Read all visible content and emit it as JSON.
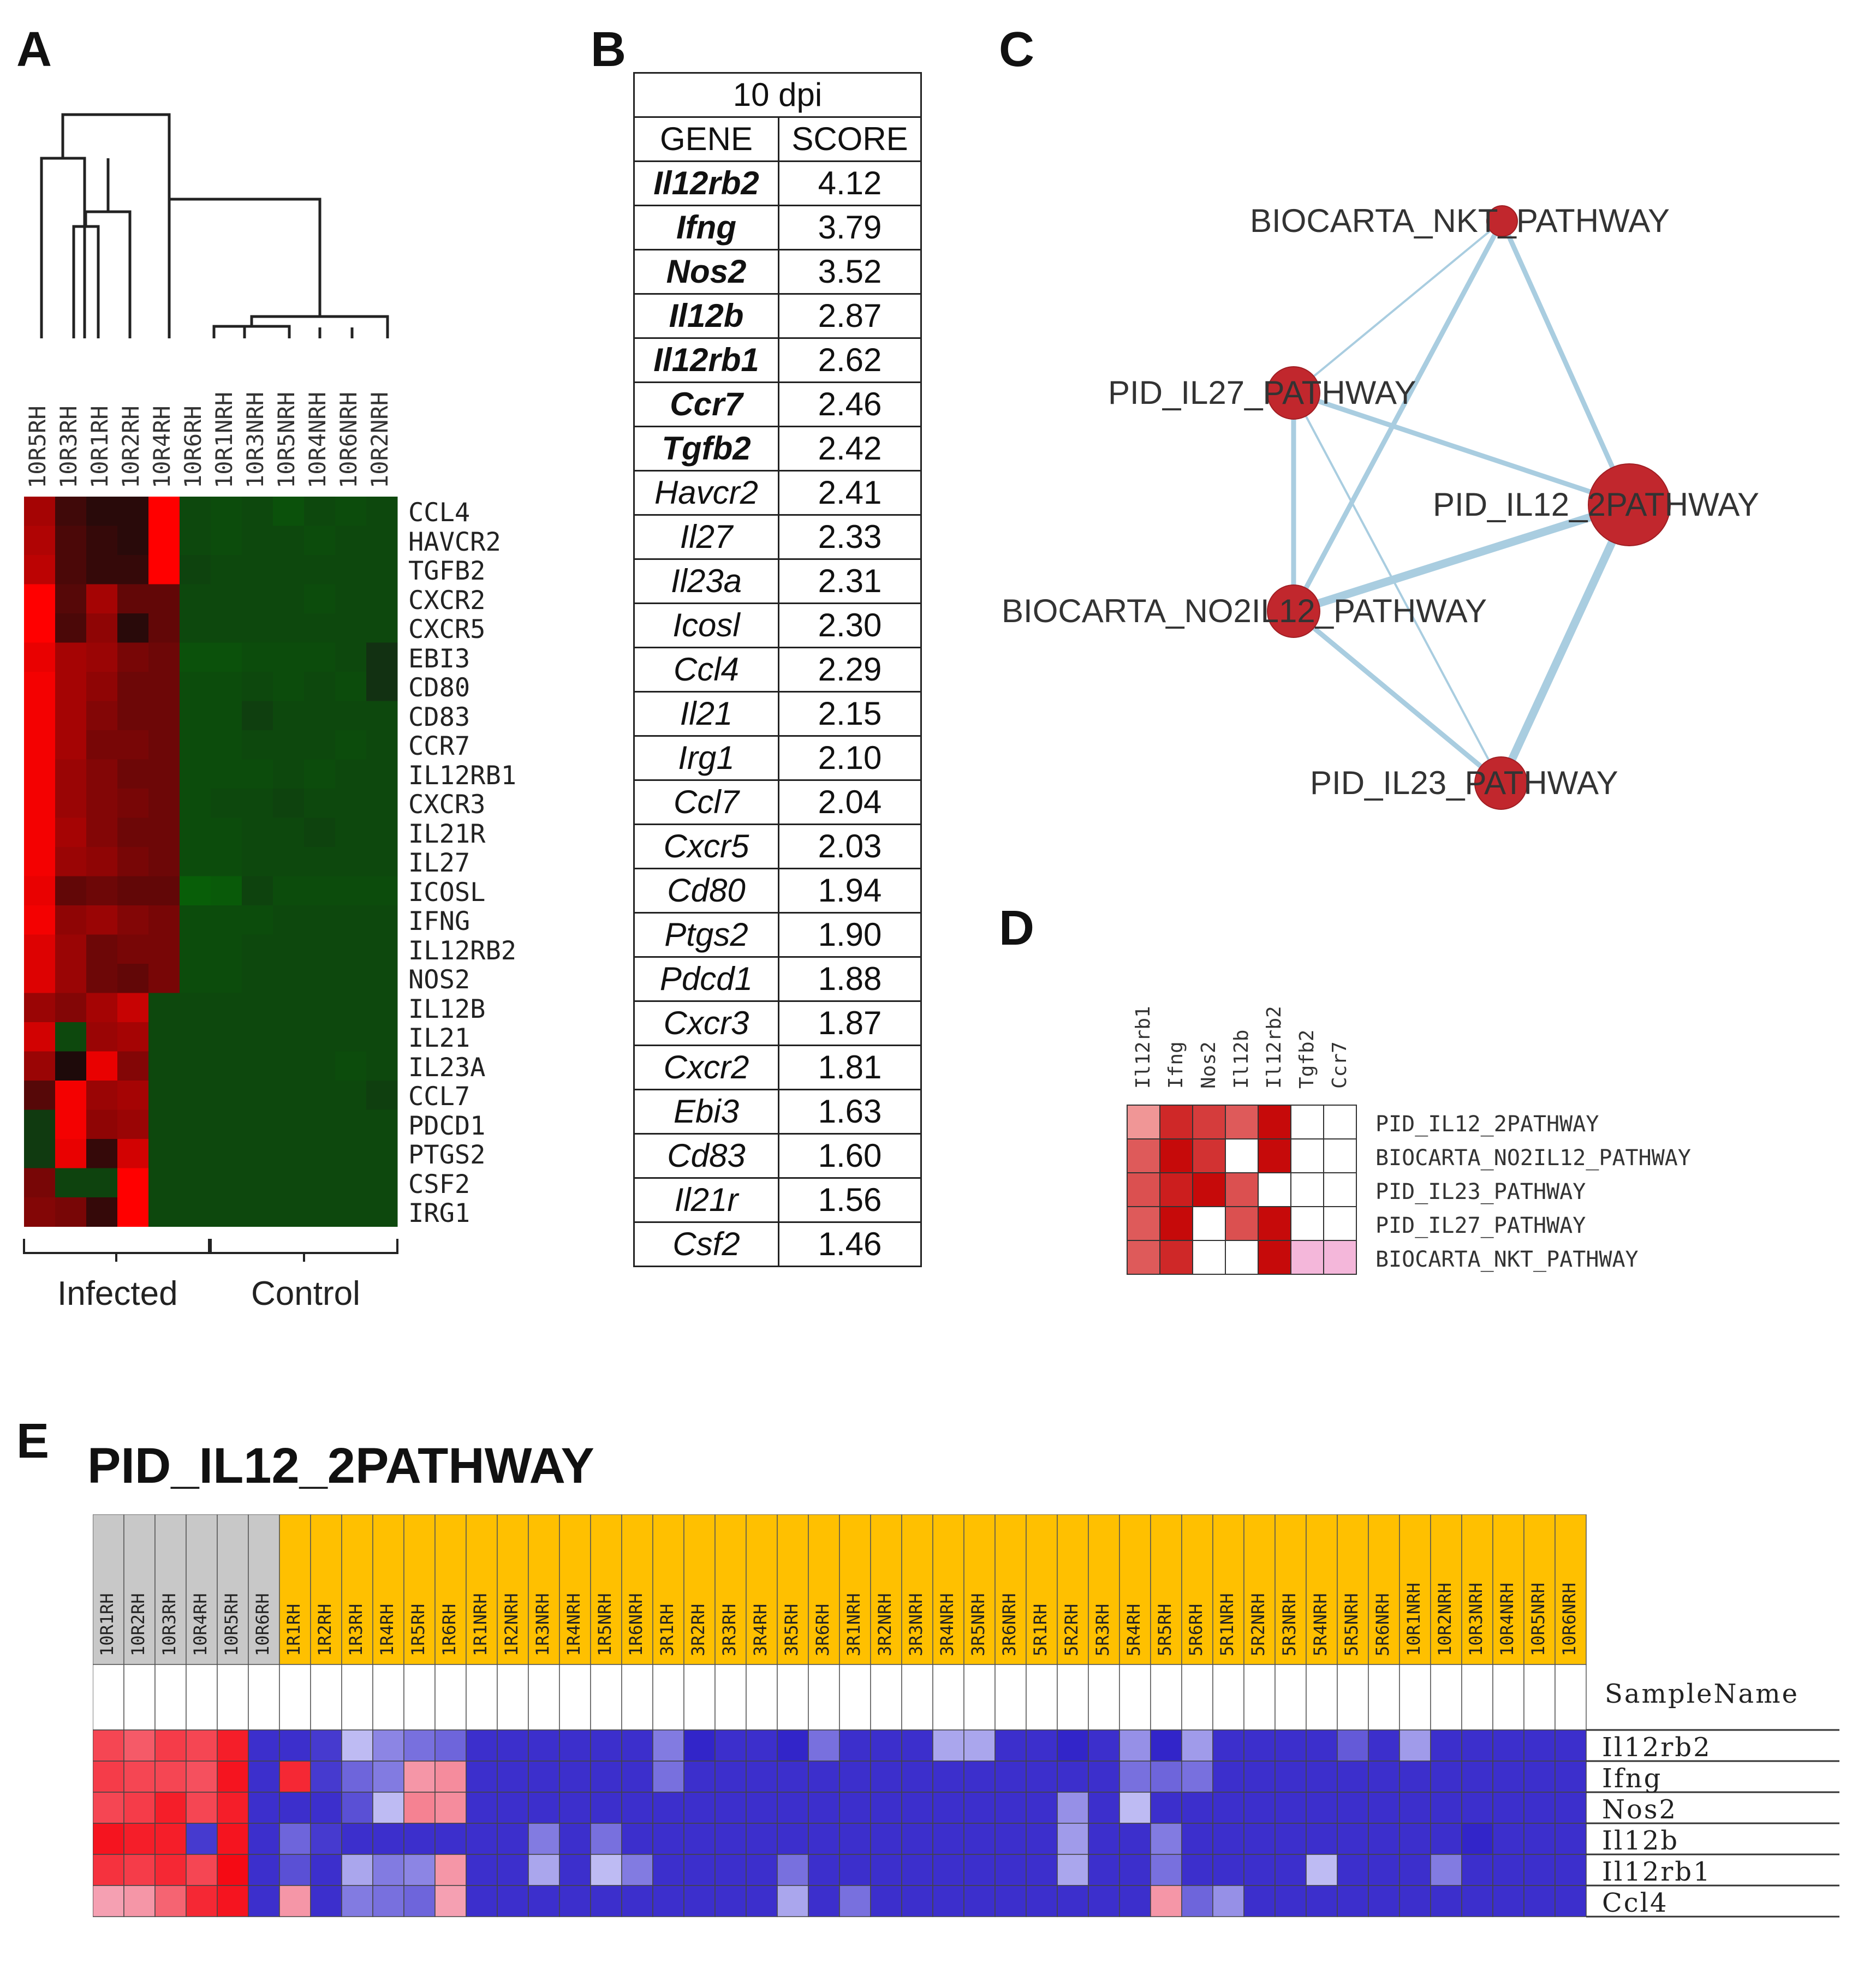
{
  "panels": {
    "a": "A",
    "b": "B",
    "c": "C",
    "d": "D",
    "e": "E"
  },
  "panel_a": {
    "columns": [
      "10R5RH",
      "10R3RH",
      "10R1RH",
      "10R2RH",
      "10R4RH",
      "10R6RH",
      "10R1NRH",
      "10R3NRH",
      "10R5NRH",
      "10R4NRH",
      "10R6NRH",
      "10R2NRH"
    ],
    "genes": [
      "CCL4",
      "HAVCR2",
      "TGFB2",
      "CXCR2",
      "CXCR5",
      "EBI3",
      "CD80",
      "CD83",
      "CCR7",
      "IL12RB1",
      "CXCR3",
      "IL21R",
      "IL27",
      "ICOSL",
      "IFNG",
      "IL12RB2",
      "NOS2",
      "IL12B",
      "IL21",
      "IL23A",
      "CCL7",
      "PDCD1",
      "PTGS2",
      "CSF2",
      "IRG1"
    ],
    "groups": {
      "infected": "Infected",
      "control": "Control"
    },
    "heatmap": [
      [
        0.6,
        0.15,
        0.05,
        0.05,
        1.0,
        -0.35,
        -0.4,
        -0.35,
        -0.45,
        -0.35,
        -0.4,
        -0.35
      ],
      [
        0.65,
        0.2,
        0.1,
        0.05,
        1.0,
        -0.35,
        -0.4,
        -0.35,
        -0.35,
        -0.4,
        -0.35,
        -0.35
      ],
      [
        0.7,
        0.2,
        0.1,
        0.1,
        1.0,
        -0.3,
        -0.35,
        -0.35,
        -0.35,
        -0.35,
        -0.35,
        -0.35
      ],
      [
        1.0,
        0.25,
        0.6,
        0.3,
        0.3,
        -0.35,
        -0.35,
        -0.35,
        -0.35,
        -0.4,
        -0.35,
        -0.35
      ],
      [
        1.0,
        0.2,
        0.5,
        0.05,
        0.3,
        -0.35,
        -0.35,
        -0.35,
        -0.35,
        -0.35,
        -0.35,
        -0.35
      ],
      [
        0.9,
        0.6,
        0.55,
        0.4,
        0.35,
        -0.45,
        -0.45,
        -0.4,
        -0.4,
        -0.4,
        -0.35,
        -0.1
      ],
      [
        0.95,
        0.6,
        0.5,
        0.35,
        0.35,
        -0.4,
        -0.4,
        -0.35,
        -0.4,
        -0.35,
        -0.4,
        -0.1
      ],
      [
        0.95,
        0.6,
        0.45,
        0.35,
        0.35,
        -0.4,
        -0.4,
        -0.25,
        -0.35,
        -0.35,
        -0.35,
        -0.35
      ],
      [
        0.95,
        0.6,
        0.4,
        0.4,
        0.35,
        -0.4,
        -0.4,
        -0.35,
        -0.35,
        -0.35,
        -0.4,
        -0.35
      ],
      [
        0.95,
        0.55,
        0.45,
        0.35,
        0.35,
        -0.4,
        -0.4,
        -0.4,
        -0.35,
        -0.4,
        -0.35,
        -0.35
      ],
      [
        0.95,
        0.55,
        0.45,
        0.4,
        0.35,
        -0.4,
        -0.35,
        -0.35,
        -0.3,
        -0.35,
        -0.35,
        -0.35
      ],
      [
        0.95,
        0.6,
        0.45,
        0.35,
        0.35,
        -0.4,
        -0.4,
        -0.35,
        -0.35,
        -0.3,
        -0.35,
        -0.35
      ],
      [
        0.95,
        0.55,
        0.5,
        0.4,
        0.35,
        -0.4,
        -0.4,
        -0.35,
        -0.35,
        -0.35,
        -0.35,
        -0.35
      ],
      [
        0.9,
        0.3,
        0.35,
        0.3,
        0.3,
        -0.6,
        -0.55,
        -0.3,
        -0.4,
        -0.4,
        -0.4,
        -0.4
      ],
      [
        0.95,
        0.5,
        0.55,
        0.45,
        0.4,
        -0.4,
        -0.4,
        -0.4,
        -0.35,
        -0.35,
        -0.35,
        -0.35
      ],
      [
        0.85,
        0.55,
        0.35,
        0.4,
        0.4,
        -0.4,
        -0.4,
        -0.35,
        -0.35,
        -0.35,
        -0.35,
        -0.35
      ],
      [
        0.85,
        0.55,
        0.35,
        0.3,
        0.4,
        -0.4,
        -0.4,
        -0.35,
        -0.35,
        -0.35,
        -0.35,
        -0.35
      ],
      [
        0.55,
        0.45,
        0.6,
        0.75,
        -0.35,
        -0.35,
        -0.35,
        -0.35,
        -0.35,
        -0.35,
        -0.35,
        -0.35
      ],
      [
        0.8,
        -0.35,
        0.55,
        0.6,
        -0.35,
        -0.35,
        -0.35,
        -0.35,
        -0.35,
        -0.35,
        -0.35,
        -0.35
      ],
      [
        0.55,
        0.0,
        0.9,
        0.45,
        -0.35,
        -0.35,
        -0.35,
        -0.35,
        -0.35,
        -0.35,
        -0.4,
        -0.35
      ],
      [
        0.25,
        0.95,
        0.55,
        0.6,
        -0.35,
        -0.35,
        -0.35,
        -0.35,
        -0.35,
        -0.35,
        -0.35,
        -0.25
      ],
      [
        -0.2,
        0.95,
        0.5,
        0.55,
        -0.35,
        -0.35,
        -0.35,
        -0.35,
        -0.35,
        -0.35,
        -0.35,
        -0.35
      ],
      [
        -0.2,
        0.9,
        0.1,
        0.8,
        -0.35,
        -0.35,
        -0.35,
        -0.35,
        -0.35,
        -0.35,
        -0.35,
        -0.35
      ],
      [
        0.4,
        -0.3,
        -0.3,
        1.0,
        -0.35,
        -0.35,
        -0.35,
        -0.35,
        -0.35,
        -0.35,
        -0.35,
        -0.35
      ],
      [
        0.45,
        0.4,
        0.1,
        1.0,
        -0.35,
        -0.35,
        -0.35,
        -0.35,
        -0.35,
        -0.35,
        -0.35,
        -0.35
      ]
    ]
  },
  "panel_b": {
    "header": "10 dpi",
    "col_gene": "GENE",
    "col_score": "SCORE",
    "rows": [
      {
        "gene": "Il12rb2",
        "score": "4.12",
        "bold": true
      },
      {
        "gene": "Ifng",
        "score": "3.79",
        "bold": true
      },
      {
        "gene": "Nos2",
        "score": "3.52",
        "bold": true
      },
      {
        "gene": "Il12b",
        "score": "2.87",
        "bold": true
      },
      {
        "gene": "Il12rb1",
        "score": "2.62",
        "bold": true
      },
      {
        "gene": "Ccr7",
        "score": "2.46",
        "bold": true
      },
      {
        "gene": "Tgfb2",
        "score": "2.42",
        "bold": true
      },
      {
        "gene": "Havcr2",
        "score": "2.41",
        "bold": false
      },
      {
        "gene": "Il27",
        "score": "2.33",
        "bold": false
      },
      {
        "gene": "Il23a",
        "score": "2.31",
        "bold": false
      },
      {
        "gene": "Icosl",
        "score": "2.30",
        "bold": false
      },
      {
        "gene": "Ccl4",
        "score": "2.29",
        "bold": false
      },
      {
        "gene": "Il21",
        "score": "2.15",
        "bold": false
      },
      {
        "gene": "Irg1",
        "score": "2.10",
        "bold": false
      },
      {
        "gene": "Ccl7",
        "score": "2.04",
        "bold": false
      },
      {
        "gene": "Cxcr5",
        "score": "2.03",
        "bold": false
      },
      {
        "gene": "Cd80",
        "score": "1.94",
        "bold": false
      },
      {
        "gene": "Ptgs2",
        "score": "1.90",
        "bold": false
      },
      {
        "gene": "Pdcd1",
        "score": "1.88",
        "bold": false
      },
      {
        "gene": "Cxcr3",
        "score": "1.87",
        "bold": false
      },
      {
        "gene": "Cxcr2",
        "score": "1.81",
        "bold": false
      },
      {
        "gene": "Ebi3",
        "score": "1.63",
        "bold": false
      },
      {
        "gene": "Cd83",
        "score": "1.60",
        "bold": false
      },
      {
        "gene": "Il21r",
        "score": "1.56",
        "bold": false
      },
      {
        "gene": "Csf2",
        "score": "1.46",
        "bold": false
      }
    ]
  },
  "panel_c": {
    "nodes": [
      {
        "id": "nkt",
        "label": "BIOCARTA_NKT_PATHWAY",
        "size": "small"
      },
      {
        "id": "il27",
        "label": "PID_IL27_PATHWAY",
        "size": "medium"
      },
      {
        "id": "il12",
        "label": "PID_IL12_2PATHWAY",
        "size": "large"
      },
      {
        "id": "no2",
        "label": "BIOCARTA_NO2IL12_PATHWAY",
        "size": "medium"
      },
      {
        "id": "il23",
        "label": "PID_IL23_PATHWAY",
        "size": "medium"
      }
    ],
    "edges": [
      {
        "source": "nkt",
        "target": "il27",
        "weight": "thin"
      },
      {
        "source": "nkt",
        "target": "no2",
        "weight": "medium"
      },
      {
        "source": "nkt",
        "target": "il12",
        "weight": "medium"
      },
      {
        "source": "il27",
        "target": "il12",
        "weight": "medium"
      },
      {
        "source": "il27",
        "target": "no2",
        "weight": "medium"
      },
      {
        "source": "il27",
        "target": "il23",
        "weight": "thin"
      },
      {
        "source": "no2",
        "target": "il12",
        "weight": "thick"
      },
      {
        "source": "no2",
        "target": "il23",
        "weight": "medium"
      },
      {
        "source": "il12",
        "target": "il23",
        "weight": "thick"
      }
    ],
    "node_color": "#c1272d",
    "edge_color": "#a9cde0"
  },
  "panel_d": {
    "genes": [
      "Il12rb1",
      "Ifng",
      "Nos2",
      "Il12b",
      "Il12rb2",
      "Tgfb2",
      "Ccr7"
    ],
    "pathways": [
      "PID_IL12_2PATHWAY",
      "BIOCARTA_NO2IL12_PATHWAY",
      "PID_IL23_PATHWAY",
      "PID_IL27_PATHWAY",
      "BIOCARTA_NKT_PATHWAY"
    ],
    "matrix": [
      [
        0.25,
        0.8,
        0.7,
        0.55,
        0.95,
        0,
        0
      ],
      [
        0.55,
        0.95,
        0.75,
        0,
        0.95,
        0,
        0
      ],
      [
        0.6,
        0.85,
        0.95,
        0.6,
        0,
        0,
        0
      ],
      [
        0.55,
        0.95,
        0,
        0.6,
        0.95,
        0,
        0
      ],
      [
        0.55,
        0.8,
        0,
        0,
        0.95,
        0.15,
        0.15
      ]
    ]
  },
  "panel_e": {
    "title": "PID_IL12_2PATHWAY",
    "samplename_label": "SampleName",
    "samples": [
      "10R1RH",
      "10R2RH",
      "10R3RH",
      "10R4RH",
      "10R5RH",
      "10R6RH",
      "1R1RH",
      "1R2RH",
      "1R3RH",
      "1R4RH",
      "1R5RH",
      "1R6RH",
      "1R1NRH",
      "1R2NRH",
      "1R3NRH",
      "1R4NRH",
      "1R5NRH",
      "1R6NRH",
      "3R1RH",
      "3R2RH",
      "3R3RH",
      "3R4RH",
      "3R5RH",
      "3R6RH",
      "3R1NRH",
      "3R2NRH",
      "3R3NRH",
      "3R4NRH",
      "3R5NRH",
      "3R6NRH",
      "5R1RH",
      "5R2RH",
      "5R3RH",
      "5R4RH",
      "5R5RH",
      "5R6RH",
      "5R1NRH",
      "5R2NRH",
      "5R3NRH",
      "5R4NRH",
      "5R5NRH",
      "5R6NRH",
      "10R1NRH",
      "10R2NRH",
      "10R3NRH",
      "10R4NRH",
      "10R5NRH",
      "10R6NRH"
    ],
    "sample_groups": [
      "gray",
      "gray",
      "gray",
      "gray",
      "gray",
      "gray",
      "gold",
      "gold",
      "gold",
      "gold",
      "gold",
      "gold",
      "gold",
      "gold",
      "gold",
      "gold",
      "gold",
      "gold",
      "gold",
      "gold",
      "gold",
      "gold",
      "gold",
      "gold",
      "gold",
      "gold",
      "gold",
      "gold",
      "gold",
      "gold",
      "gold",
      "gold",
      "gold",
      "gold",
      "gold",
      "gold",
      "gold",
      "gold",
      "gold",
      "gold",
      "gold",
      "gold",
      "gold",
      "gold",
      "gold",
      "gold",
      "gold",
      "gold"
    ],
    "genes": [
      "Il12rb2",
      "Ifng",
      "Nos2",
      "Il12b",
      "Il12rb1",
      "Ccl4"
    ],
    "matrix": [
      [
        0.7,
        0.6,
        0.75,
        0.7,
        0.9,
        -0.85,
        -0.85,
        -0.8,
        -0.2,
        -0.45,
        -0.55,
        -0.6,
        -0.85,
        -0.85,
        -0.85,
        -0.85,
        -0.85,
        -0.85,
        -0.5,
        -0.9,
        -0.85,
        -0.85,
        -0.9,
        -0.55,
        -0.85,
        -0.85,
        -0.85,
        -0.3,
        -0.3,
        -0.85,
        -0.85,
        -0.9,
        -0.85,
        -0.4,
        -0.9,
        -0.35,
        -0.85,
        -0.85,
        -0.85,
        -0.85,
        -0.65,
        -0.85,
        -0.35,
        -0.85,
        -0.85,
        -0.85,
        -0.85,
        -0.85
      ],
      [
        0.75,
        0.7,
        0.7,
        0.65,
        0.95,
        -0.85,
        0.85,
        -0.8,
        -0.6,
        -0.5,
        0.3,
        0.35,
        -0.85,
        -0.85,
        -0.85,
        -0.85,
        -0.85,
        -0.85,
        -0.55,
        -0.85,
        -0.85,
        -0.85,
        -0.85,
        -0.85,
        -0.85,
        -0.85,
        -0.85,
        -0.85,
        -0.85,
        -0.85,
        -0.85,
        -0.85,
        -0.85,
        -0.55,
        -0.6,
        -0.55,
        -0.85,
        -0.85,
        -0.85,
        -0.85,
        -0.85,
        -0.85,
        -0.85,
        -0.85,
        -0.85,
        -0.85,
        -0.85,
        -0.85
      ],
      [
        0.7,
        0.75,
        0.9,
        0.7,
        0.9,
        -0.85,
        -0.85,
        -0.85,
        -0.7,
        -0.2,
        0.4,
        0.35,
        -0.85,
        -0.85,
        -0.85,
        -0.85,
        -0.85,
        -0.85,
        -0.85,
        -0.85,
        -0.85,
        -0.85,
        -0.85,
        -0.85,
        -0.85,
        -0.85,
        -0.85,
        -0.85,
        -0.85,
        -0.85,
        -0.85,
        -0.4,
        -0.85,
        -0.2,
        -0.85,
        -0.85,
        -0.85,
        -0.85,
        -0.85,
        -0.85,
        -0.85,
        -0.85,
        -0.85,
        -0.85,
        -0.85,
        -0.85,
        -0.85,
        -0.85
      ],
      [
        0.95,
        0.9,
        0.9,
        -0.8,
        0.95,
        -0.85,
        -0.6,
        -0.8,
        -0.85,
        -0.85,
        -0.85,
        -0.85,
        -0.85,
        -0.85,
        -0.5,
        -0.85,
        -0.55,
        -0.85,
        -0.85,
        -0.85,
        -0.85,
        -0.85,
        -0.85,
        -0.85,
        -0.85,
        -0.85,
        -0.85,
        -0.85,
        -0.85,
        -0.85,
        -0.85,
        -0.35,
        -0.85,
        -0.85,
        -0.5,
        -0.85,
        -0.85,
        -0.85,
        -0.85,
        -0.85,
        -0.85,
        -0.85,
        -0.85,
        -0.85,
        -0.9,
        -0.85,
        -0.85,
        -0.85
      ],
      [
        0.8,
        0.75,
        0.85,
        0.7,
        1.0,
        -0.85,
        -0.7,
        -0.85,
        -0.3,
        -0.5,
        -0.45,
        0.3,
        -0.85,
        -0.85,
        -0.3,
        -0.85,
        -0.2,
        -0.5,
        -0.85,
        -0.85,
        -0.85,
        -0.85,
        -0.55,
        -0.85,
        -0.85,
        -0.85,
        -0.85,
        -0.85,
        -0.85,
        -0.85,
        -0.85,
        -0.3,
        -0.85,
        -0.85,
        -0.55,
        -0.85,
        -0.85,
        -0.85,
        -0.85,
        -0.2,
        -0.85,
        -0.85,
        -0.85,
        -0.5,
        -0.85,
        -0.85,
        -0.85,
        -0.85
      ],
      [
        0.25,
        0.3,
        0.55,
        0.85,
        0.95,
        -0.85,
        0.3,
        -0.85,
        -0.5,
        -0.55,
        -0.6,
        0.25,
        -0.85,
        -0.85,
        -0.85,
        -0.85,
        -0.85,
        -0.85,
        -0.85,
        -0.85,
        -0.85,
        -0.85,
        -0.3,
        -0.85,
        -0.55,
        -0.85,
        -0.85,
        -0.85,
        -0.85,
        -0.85,
        -0.85,
        -0.85,
        -0.85,
        -0.85,
        0.3,
        -0.6,
        -0.4,
        -0.85,
        -0.85,
        -0.85,
        -0.85,
        -0.85,
        -0.85,
        -0.85,
        -0.85,
        -0.85,
        -0.85,
        -0.85
      ]
    ]
  }
}
